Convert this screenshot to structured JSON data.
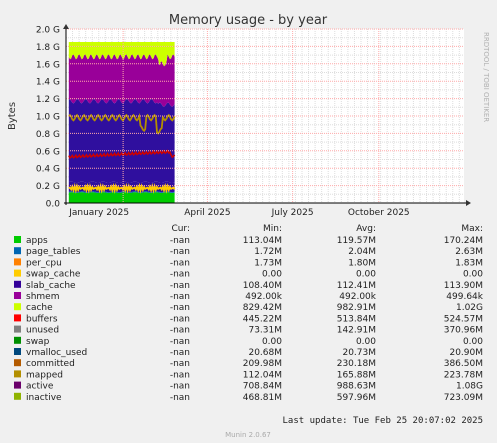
{
  "chart_data": {
    "type": "area",
    "title": "Memory usage - by year",
    "ylabel": "Bytes",
    "watermark": "RRDTOOL / TOBI OETIKER",
    "ylim": [
      0,
      2.0
    ],
    "yunit": "G",
    "yticks": [
      "0.0",
      "0.2 G",
      "0.4 G",
      "0.6 G",
      "0.8 G",
      "1.0 G",
      "1.2 G",
      "1.4 G",
      "1.6 G",
      "1.8 G",
      "2.0 G"
    ],
    "xticks": [
      "January 2025",
      "April 2025",
      "July 2025",
      "October 2025"
    ],
    "x_range": [
      "2024-11-01",
      "2025-12-31"
    ],
    "data_range": [
      "2024-11-04",
      "2025-02-25"
    ],
    "grid": true,
    "approx_stack_levels_G": {
      "apps": 0.12,
      "active_line": 0.17,
      "inactive_line": 0.53,
      "buffers_bottom": 1.17,
      "cache_line": 0.98,
      "buffers_top": 1.68,
      "unused_top": 1.85
    },
    "legend": {
      "header": {
        "cur": "Cur:",
        "min": "Min:",
        "avg": "Avg:",
        "max": "Max:"
      },
      "rows": [
        {
          "name": "apps",
          "color": "#00cc00",
          "cur": "-nan",
          "min": "113.04M",
          "avg": "119.57M",
          "max": "170.24M"
        },
        {
          "name": "page_tables",
          "color": "#0066b3",
          "cur": "-nan",
          "min": "1.72M",
          "avg": "2.04M",
          "max": "2.63M"
        },
        {
          "name": "per_cpu",
          "color": "#ff8000",
          "cur": "-nan",
          "min": "1.73M",
          "avg": "1.80M",
          "max": "1.83M"
        },
        {
          "name": "swap_cache",
          "color": "#ffcc00",
          "cur": "-nan",
          "min": "0.00",
          "avg": "0.00",
          "max": "0.00"
        },
        {
          "name": "slab_cache",
          "color": "#330099",
          "cur": "-nan",
          "min": "108.40M",
          "avg": "112.41M",
          "max": "113.90M"
        },
        {
          "name": "shmem",
          "color": "#990099",
          "cur": "-nan",
          "min": "492.00k",
          "avg": "492.00k",
          "max": "499.64k"
        },
        {
          "name": "cache",
          "color": "#ccff00",
          "cur": "-nan",
          "min": "829.42M",
          "avg": "982.91M",
          "max": "1.02G"
        },
        {
          "name": "buffers",
          "color": "#ff0000",
          "cur": "-nan",
          "min": "445.22M",
          "avg": "513.84M",
          "max": "524.57M"
        },
        {
          "name": "unused",
          "color": "#808080",
          "cur": "-nan",
          "min": "73.31M",
          "avg": "142.91M",
          "max": "370.96M"
        },
        {
          "name": "swap",
          "color": "#008f00",
          "cur": "-nan",
          "min": "0.00",
          "avg": "0.00",
          "max": "0.00"
        },
        {
          "name": "vmalloc_used",
          "color": "#00487d",
          "cur": "-nan",
          "min": "20.68M",
          "avg": "20.73M",
          "max": "20.90M"
        },
        {
          "name": "committed",
          "color": "#b35a00",
          "cur": "-nan",
          "min": "209.98M",
          "avg": "230.18M",
          "max": "386.50M"
        },
        {
          "name": "mapped",
          "color": "#b38f00",
          "cur": "-nan",
          "min": "112.04M",
          "avg": "165.88M",
          "max": "223.78M"
        },
        {
          "name": "active",
          "color": "#6b006b",
          "cur": "-nan",
          "min": "708.84M",
          "avg": "988.63M",
          "max": "1.08G"
        },
        {
          "name": "inactive",
          "color": "#8fb300",
          "cur": "-nan",
          "min": "468.81M",
          "avg": "597.96M",
          "max": "723.09M"
        }
      ]
    },
    "last_update": "Last update: Tue Feb 25 20:07:02 2025",
    "footer": "Munin 2.0.67"
  },
  "colors": {
    "apps": "#00cc00",
    "page_tables": "#0066b3",
    "per_cpu": "#ff8000",
    "slab_cache": "#330099",
    "shmem": "#990099",
    "cache": "#2f0f9e",
    "buffers": "#990099",
    "unused": "#ccff00",
    "inactive_line": "#cc0000",
    "active_line": "#b38f00",
    "committed_line": "#ffcc00",
    "grid_major": "#ffaaaa",
    "grid_minor": "#dddddd",
    "background": "#f0f0f0",
    "plot_bg": "#ffffff"
  }
}
